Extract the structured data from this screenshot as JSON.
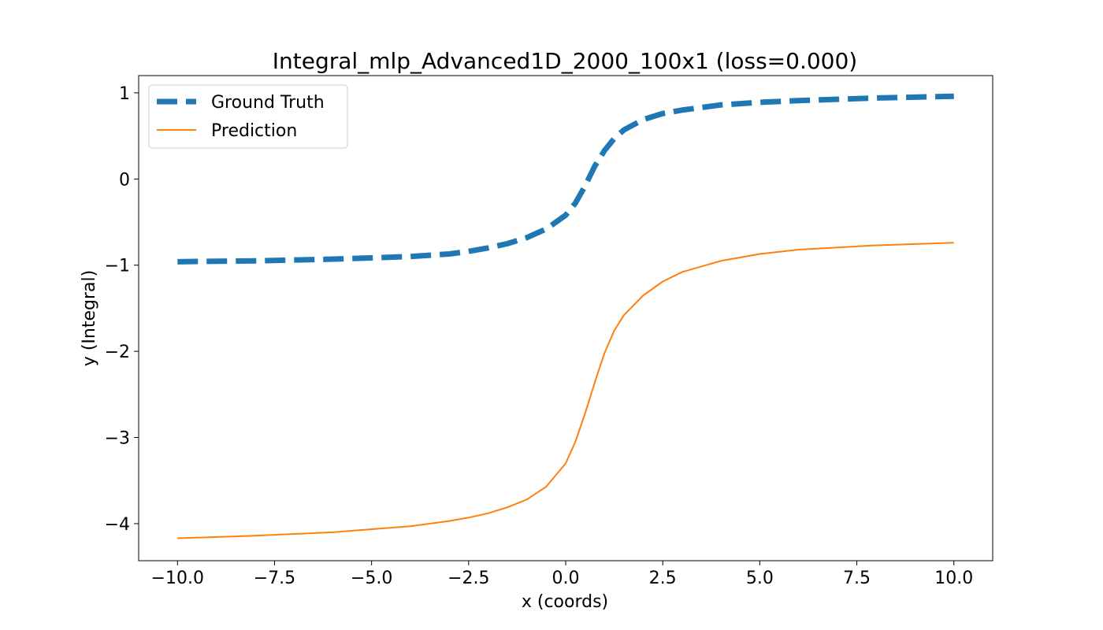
{
  "chart_data": {
    "type": "line",
    "title": "Integral_mlp_Advanced1D_2000_100x1 (loss=0.000)",
    "xlabel": "x (coords)",
    "ylabel": "y (Integral)",
    "xlim": [
      -11.0,
      11.0
    ],
    "ylim": [
      -4.43,
      1.2
    ],
    "xticks": [
      -10.0,
      -7.5,
      -5.0,
      -2.5,
      0.0,
      2.5,
      5.0,
      7.5,
      10.0
    ],
    "xtick_labels": [
      "−10.0",
      "−7.5",
      "−5.0",
      "−2.5",
      "0.0",
      "2.5",
      "5.0",
      "7.5",
      "10.0"
    ],
    "yticks": [
      1,
      0,
      -1,
      -2,
      -3,
      -4
    ],
    "ytick_labels": [
      "1",
      "0",
      "−1",
      "−2",
      "−3",
      "−4"
    ],
    "grid": false,
    "legend_position": "top-left",
    "series": [
      {
        "name": "Ground Truth",
        "color": "#1f77b4",
        "style": "dashed",
        "x": [
          -10,
          -8,
          -6,
          -4,
          -3,
          -2.5,
          -2,
          -1.5,
          -1,
          -0.5,
          0,
          0.25,
          0.5,
          0.75,
          1,
          1.25,
          1.5,
          2,
          2.5,
          3,
          4,
          5,
          6,
          8,
          10
        ],
        "y": [
          -0.96,
          -0.95,
          -0.93,
          -0.9,
          -0.87,
          -0.84,
          -0.8,
          -0.75,
          -0.68,
          -0.58,
          -0.42,
          -0.28,
          -0.08,
          0.15,
          0.33,
          0.47,
          0.57,
          0.69,
          0.76,
          0.8,
          0.86,
          0.89,
          0.91,
          0.94,
          0.96
        ]
      },
      {
        "name": "Prediction",
        "color": "#ff7f0e",
        "style": "solid",
        "x": [
          -10,
          -8,
          -6,
          -4,
          -3,
          -2.5,
          -2,
          -1.5,
          -1,
          -0.5,
          0,
          0.25,
          0.5,
          0.75,
          1,
          1.25,
          1.5,
          2,
          2.5,
          3,
          4,
          5,
          6,
          8,
          10
        ],
        "y": [
          -4.17,
          -4.14,
          -4.1,
          -4.03,
          -3.97,
          -3.93,
          -3.88,
          -3.81,
          -3.72,
          -3.57,
          -3.3,
          -3.05,
          -2.72,
          -2.36,
          -2.02,
          -1.76,
          -1.58,
          -1.35,
          -1.19,
          -1.08,
          -0.95,
          -0.87,
          -0.82,
          -0.77,
          -0.74
        ]
      }
    ]
  }
}
